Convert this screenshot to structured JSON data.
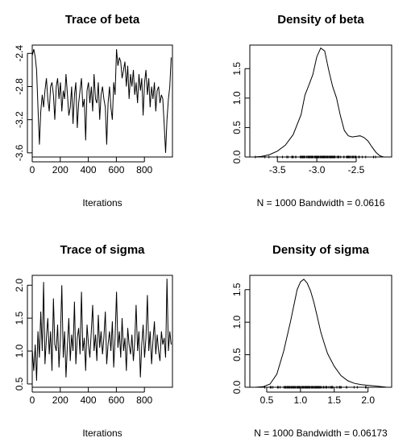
{
  "chart_data": [
    {
      "type": "line",
      "title": "Trace of beta",
      "xlabel": "Iterations",
      "ylabel": "",
      "xlim": [
        0,
        1000
      ],
      "ylim": [
        -3.65,
        -2.3
      ],
      "x_ticks": [
        "0",
        "200",
        "400",
        "600",
        "800"
      ],
      "x_tick_values": [
        0,
        200,
        400,
        600,
        800
      ],
      "y_ticks": [
        "-3.6",
        "-3.2",
        "-2.8",
        "-2.4"
      ],
      "y_tick_values": [
        -3.6,
        -3.2,
        -2.8,
        -2.4
      ],
      "n_iterations": 1000,
      "series": [
        {
          "x_start": 1,
          "x_step": 10,
          "values": [
            -2.42,
            -2.35,
            -2.44,
            -2.6,
            -3.05,
            -3.5,
            -3.1,
            -2.9,
            -3.05,
            -2.85,
            -2.7,
            -2.95,
            -3.1,
            -2.8,
            -2.75,
            -2.9,
            -3.2,
            -2.8,
            -2.7,
            -2.95,
            -2.75,
            -3.1,
            -2.85,
            -2.95,
            -2.65,
            -2.9,
            -3.15,
            -3.05,
            -2.8,
            -3.25,
            -2.9,
            -2.75,
            -3.3,
            -3.0,
            -2.85,
            -2.7,
            -3.05,
            -2.95,
            -3.45,
            -2.85,
            -2.75,
            -3.0,
            -2.8,
            -3.1,
            -2.65,
            -2.95,
            -3.0,
            -2.75,
            -3.2,
            -2.9,
            -2.8,
            -2.95,
            -3.05,
            -3.5,
            -3.0,
            -2.8,
            -3.05,
            -3.2,
            -2.75,
            -2.9,
            -2.35,
            -2.55,
            -2.45,
            -2.5,
            -2.7,
            -2.6,
            -2.5,
            -2.8,
            -2.55,
            -2.95,
            -2.65,
            -2.8,
            -2.6,
            -2.9,
            -2.75,
            -3.0,
            -2.65,
            -2.85,
            -2.7,
            -3.15,
            -2.75,
            -2.6,
            -2.9,
            -2.7,
            -3.05,
            -2.8,
            -2.95,
            -2.75,
            -3.1,
            -2.85,
            -2.8,
            -3.0,
            -2.9,
            -2.95,
            -3.25,
            -3.6,
            -3.2,
            -2.95,
            -2.8,
            -2.45
          ]
        }
      ]
    },
    {
      "type": "area",
      "title": "Density of beta",
      "xlabel": "N = 1000   Bandwidth = 0.0616",
      "ylabel": "",
      "xlim": [
        -3.85,
        -2.05
      ],
      "ylim": [
        0,
        1.9
      ],
      "x_ticks": [
        "-3.5",
        "-3.0",
        "-2.5"
      ],
      "x_tick_values": [
        -3.5,
        -3.0,
        -2.5
      ],
      "y_ticks": [
        "0.0",
        "0.5",
        "1.0",
        "1.5"
      ],
      "y_tick_values": [
        0,
        0.5,
        1.0,
        1.5
      ],
      "series": [
        {
          "x": [
            -3.79,
            -3.7,
            -3.6,
            -3.5,
            -3.4,
            -3.3,
            -3.2,
            -3.15,
            -3.1,
            -3.05,
            -3.0,
            -2.95,
            -2.9,
            -2.85,
            -2.8,
            -2.75,
            -2.7,
            -2.65,
            -2.6,
            -2.55,
            -2.5,
            -2.45,
            -2.4,
            -2.35,
            -2.3,
            -2.25,
            -2.2,
            -2.15,
            -2.1
          ],
          "values": [
            0.0,
            0.01,
            0.04,
            0.1,
            0.2,
            0.38,
            0.72,
            1.05,
            1.22,
            1.4,
            1.7,
            1.85,
            1.8,
            1.48,
            1.2,
            1.0,
            0.7,
            0.45,
            0.36,
            0.34,
            0.35,
            0.36,
            0.33,
            0.27,
            0.17,
            0.08,
            0.02,
            0.0,
            0.0
          ]
        }
      ],
      "rug": true
    },
    {
      "type": "line",
      "title": "Trace of sigma",
      "xlabel": "Iterations",
      "ylabel": "",
      "xlim": [
        0,
        1000
      ],
      "ylim": [
        0.45,
        2.15
      ],
      "x_ticks": [
        "0",
        "200",
        "400",
        "600",
        "800"
      ],
      "x_tick_values": [
        0,
        200,
        400,
        600,
        800
      ],
      "y_ticks": [
        "0.5",
        "1.0",
        "1.5",
        "2.0"
      ],
      "y_tick_values": [
        0.5,
        1.0,
        1.5,
        2.0
      ],
      "n_iterations": 1000,
      "series": [
        {
          "x_start": 1,
          "x_step": 10,
          "values": [
            1.0,
            0.7,
            1.1,
            0.55,
            1.3,
            0.9,
            1.6,
            1.0,
            2.05,
            0.8,
            1.2,
            1.5,
            0.95,
            1.3,
            0.7,
            1.8,
            1.1,
            1.0,
            1.4,
            0.75,
            1.2,
            2.0,
            0.9,
            1.3,
            0.6,
            1.1,
            1.5,
            0.85,
            1.25,
            1.0,
            1.75,
            0.8,
            1.2,
            1.35,
            0.95,
            1.9,
            1.0,
            1.2,
            0.7,
            1.4,
            1.1,
            0.9,
            1.3,
            1.7,
            1.0,
            1.25,
            0.85,
            1.55,
            1.05,
            1.3,
            0.95,
            1.2,
            1.6,
            0.8,
            1.1,
            1.3,
            1.0,
            1.45,
            0.75,
            1.2,
            1.9,
            1.05,
            1.3,
            0.9,
            1.5,
            1.0,
            1.2,
            0.7,
            1.35,
            1.1,
            0.95,
            1.25,
            0.85,
            1.15,
            1.7,
            1.0,
            1.3,
            0.6,
            1.1,
            1.4,
            0.9,
            1.2,
            1.85,
            1.0,
            1.3,
            0.8,
            1.15,
            1.45,
            0.95,
            1.25,
            1.0,
            0.85,
            1.3,
            1.1,
            1.2,
            0.9,
            2.1,
            1.0,
            1.3,
            1.1
          ]
        }
      ]
    },
    {
      "type": "area",
      "title": "Density of sigma",
      "xlabel": "N = 1000   Bandwidth = 0.06173",
      "ylabel": "",
      "xlim": [
        0.25,
        2.35
      ],
      "ylim": [
        0,
        1.72
      ],
      "x_ticks": [
        "0.5",
        "1.0",
        "1.5",
        "2.0"
      ],
      "x_tick_values": [
        0.5,
        1.0,
        1.5,
        2.0
      ],
      "y_ticks": [
        "0.0",
        "0.5",
        "1.0",
        "1.5"
      ],
      "y_tick_values": [
        0,
        0.5,
        1.0,
        1.5
      ],
      "series": [
        {
          "x": [
            0.33,
            0.45,
            0.55,
            0.65,
            0.75,
            0.85,
            0.9,
            0.95,
            1.0,
            1.05,
            1.1,
            1.15,
            1.2,
            1.25,
            1.3,
            1.35,
            1.4,
            1.5,
            1.6,
            1.7,
            1.8,
            1.9,
            2.0,
            2.1,
            2.2,
            2.28
          ],
          "values": [
            0.0,
            0.01,
            0.05,
            0.2,
            0.55,
            1.0,
            1.25,
            1.5,
            1.62,
            1.66,
            1.6,
            1.48,
            1.3,
            1.08,
            0.85,
            0.68,
            0.52,
            0.32,
            0.18,
            0.1,
            0.06,
            0.04,
            0.03,
            0.02,
            0.01,
            0.0
          ]
        }
      ],
      "rug": true
    }
  ]
}
